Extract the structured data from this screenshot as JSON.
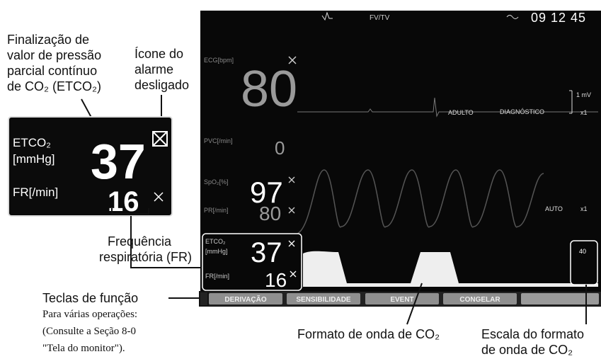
{
  "annotations": {
    "etco2_value": {
      "lines": [
        "Finalização de",
        "valor de pressão",
        "parcial contínuo",
        "de CO₂ (ETCO₂)"
      ]
    },
    "alarm_off_icon": {
      "lines": [
        "Ícone do",
        "alarme",
        "desligado"
      ]
    },
    "respiratory_rate": {
      "lines": [
        "Frequência",
        "respiratória (FR)"
      ]
    },
    "function_keys": {
      "title": "Teclas de função",
      "lines": [
        "Para várias operações:",
        "(Consulte a Seção 8-0",
        "\"Tela do monitor\")."
      ]
    },
    "co2_waveform": {
      "lines": [
        "Formato de onda de CO₂"
      ]
    },
    "co2_scale": {
      "lines": [
        "Escala do formato",
        "de onda de CO₂"
      ]
    }
  },
  "zoom_panel": {
    "etco2_label": "ETCO₂",
    "etco2_unit": "[mmHg]",
    "etco2_value": "37",
    "rr_label": "FR[/min]",
    "rr_value": "16"
  },
  "monitor": {
    "header": {
      "rhythm": "FV/TV",
      "time": "09 12 45"
    },
    "ecg": {
      "label": "ECG[bpm]",
      "value": "80",
      "mode": "ADULTO",
      "filter": "DIAGNÓSTICO",
      "scale": "1 mV",
      "gain": "x1"
    },
    "pvc": {
      "label": "PVC[/min]",
      "value": "0"
    },
    "spo2": {
      "label": "SpO₂[%]",
      "value": "97",
      "pr_label": "PR[/min]",
      "pr_value": "80",
      "mode": "AUTO",
      "gain": "x1"
    },
    "etco2": {
      "label": "ETCO₂",
      "unit": "[mmHg]",
      "value": "37",
      "rr_label": "FR[/min]",
      "rr_value": "16",
      "scale": "40"
    },
    "function_keys": [
      "DERIVAÇÃO",
      "SENSIBILIDADE",
      "EVENT",
      "CONGELAR"
    ]
  }
}
